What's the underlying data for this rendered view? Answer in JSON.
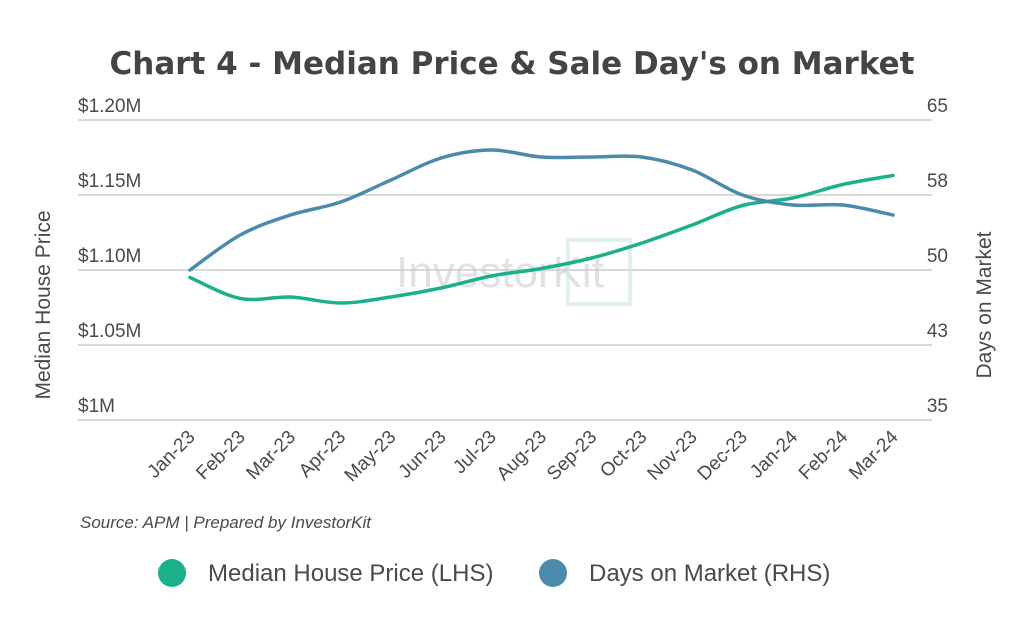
{
  "chart_data": {
    "type": "line",
    "title": "Chart 4 - Median Price & Sale Day's on Market",
    "categories": [
      "Jan-23",
      "Feb-23",
      "Mar-23",
      "Apr-23",
      "May-23",
      "Jun-23",
      "Jul-23",
      "Aug-23",
      "Sep-23",
      "Oct-23",
      "Nov-23",
      "Dec-23",
      "Jan-24",
      "Feb-24",
      "Mar-24"
    ],
    "series": [
      {
        "name": "Median House Price (LHS)",
        "axis": "left",
        "color": "#1ab08a",
        "values": [
          1095000,
          1081000,
          1082000,
          1078000,
          1082000,
          1088000,
          1096000,
          1101000,
          1108000,
          1118000,
          1130000,
          1143000,
          1148000,
          1157000,
          1163000
        ]
      },
      {
        "name": "Days on Market (RHS)",
        "axis": "right",
        "color": "#4a8aac",
        "values": [
          50,
          53.5,
          55.5,
          56.8,
          59,
          61.2,
          62,
          61.3,
          61.3,
          61.3,
          60,
          57.5,
          56.5,
          56.5,
          55.5
        ]
      }
    ],
    "y_left": {
      "label": "Median House Price",
      "ylim": [
        1000000,
        1200000
      ],
      "ticks": [
        1000000,
        1050000,
        1100000,
        1150000,
        1200000
      ],
      "tick_labels": [
        "$1M",
        "$1.05M",
        "$1.10M",
        "$1.15M",
        "$1.20M"
      ]
    },
    "y_right": {
      "label": "Days on Market",
      "ylim": [
        35,
        65
      ],
      "ticks": [
        35,
        42.5,
        50,
        57.5,
        65
      ],
      "tick_labels": [
        "35",
        "43",
        "50",
        "58",
        "65"
      ]
    },
    "grid": true,
    "legend": "bottom-center",
    "source": "Source: APM | Prepared by InvestorKit",
    "watermark": "InvestorKit"
  }
}
